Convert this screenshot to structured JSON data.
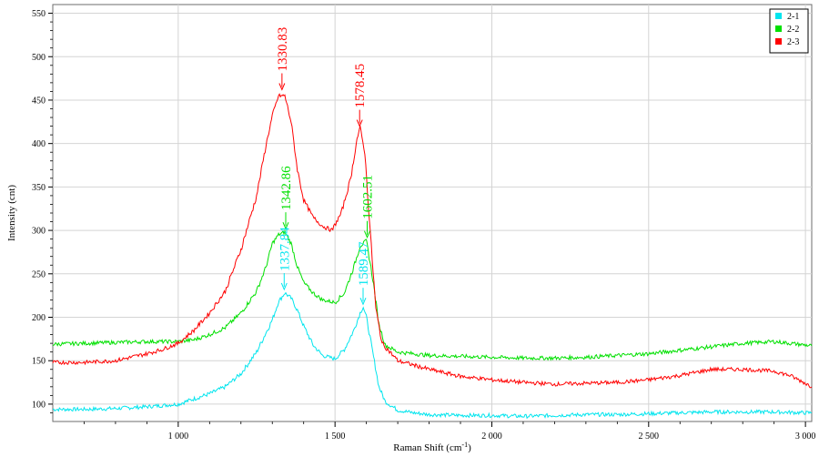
{
  "chart_data": {
    "type": "line",
    "xlabel": "Raman Shift (cm",
    "xlabel_sup": "-1",
    "xlabel_close": ")",
    "ylabel": "Intensity (cnt)",
    "xlim": [
      600,
      3020
    ],
    "ylim": [
      80,
      560
    ],
    "xticks": [
      {
        "value": 1000,
        "label": "1 000"
      },
      {
        "value": 1500,
        "label": "1 500"
      },
      {
        "value": 2000,
        "label": "2 000"
      },
      {
        "value": 2500,
        "label": "2 500"
      },
      {
        "value": 3000,
        "label": "3 000"
      }
    ],
    "yticks": [
      {
        "value": 100,
        "label": "100"
      },
      {
        "value": 150,
        "label": "150"
      },
      {
        "value": 200,
        "label": "200"
      },
      {
        "value": 250,
        "label": "250"
      },
      {
        "value": 300,
        "label": "300"
      },
      {
        "value": 350,
        "label": "350"
      },
      {
        "value": 400,
        "label": "400"
      },
      {
        "value": 450,
        "label": "450"
      },
      {
        "value": 500,
        "label": "500"
      },
      {
        "value": 550,
        "label": "550"
      }
    ],
    "grid": true,
    "legend_position": "top-right",
    "series": [
      {
        "name": "2-1",
        "color": "#00e5ee",
        "x": [
          600,
          700,
          800,
          900,
          1000,
          1100,
          1150,
          1200,
          1250,
          1300,
          1320,
          1340,
          1360,
          1380,
          1400,
          1430,
          1460,
          1500,
          1530,
          1560,
          1580,
          1590,
          1600,
          1620,
          1640,
          1660,
          1700,
          1750,
          1800,
          1900,
          2000,
          2100,
          2200,
          2300,
          2400,
          2500,
          2600,
          2700,
          2800,
          2900,
          3000,
          3020
        ],
        "y": [
          94,
          94,
          95,
          97,
          100,
          112,
          120,
          135,
          160,
          197,
          218,
          228,
          222,
          208,
          190,
          168,
          156,
          152,
          163,
          185,
          205,
          212,
          200,
          160,
          120,
          103,
          93,
          90,
          88,
          87,
          87,
          86,
          87,
          88,
          88,
          89,
          90,
          91,
          91,
          91,
          90,
          90
        ]
      },
      {
        "name": "2-2",
        "color": "#00e000",
        "x": [
          600,
          700,
          800,
          900,
          1000,
          1050,
          1100,
          1150,
          1200,
          1250,
          1280,
          1300,
          1320,
          1340,
          1360,
          1380,
          1400,
          1430,
          1460,
          1500,
          1530,
          1560,
          1580,
          1600,
          1620,
          1640,
          1660,
          1700,
          1800,
          1900,
          2000,
          2100,
          2200,
          2300,
          2400,
          2500,
          2600,
          2700,
          2800,
          2900,
          3000,
          3020
        ],
        "y": [
          169,
          170,
          171,
          172,
          172,
          174,
          180,
          188,
          205,
          230,
          258,
          285,
          295,
          298,
          285,
          258,
          240,
          228,
          220,
          217,
          228,
          258,
          282,
          288,
          245,
          192,
          168,
          160,
          156,
          155,
          154,
          153,
          153,
          154,
          156,
          158,
          162,
          166,
          170,
          172,
          168,
          167
        ]
      },
      {
        "name": "2-3",
        "color": "#ff0000",
        "x": [
          600,
          700,
          800,
          900,
          950,
          1000,
          1050,
          1100,
          1150,
          1200,
          1250,
          1280,
          1300,
          1320,
          1340,
          1360,
          1380,
          1400,
          1430,
          1460,
          1490,
          1520,
          1550,
          1570,
          1580,
          1595,
          1610,
          1630,
          1650,
          1700,
          1800,
          1900,
          2000,
          2100,
          2200,
          2300,
          2400,
          2500,
          2600,
          2700,
          2800,
          2900,
          2950,
          3000,
          3020
        ],
        "y": [
          148,
          148,
          150,
          158,
          163,
          170,
          185,
          205,
          230,
          278,
          340,
          398,
          432,
          455,
          455,
          425,
          370,
          335,
          315,
          305,
          300,
          320,
          360,
          405,
          418,
          390,
          310,
          210,
          170,
          150,
          140,
          132,
          128,
          125,
          123,
          124,
          125,
          128,
          133,
          140,
          140,
          138,
          133,
          124,
          120
        ]
      }
    ],
    "annotations": [
      {
        "text": "1330.83",
        "x": 1330.83,
        "tip_y": 462,
        "color": "#ff0000"
      },
      {
        "text": "1578.45",
        "x": 1578.45,
        "tip_y": 420,
        "color": "#ff0000"
      },
      {
        "text": "1342.86",
        "x": 1342.86,
        "tip_y": 302,
        "color": "#00e000"
      },
      {
        "text": "1602.51",
        "x": 1602.51,
        "tip_y": 292,
        "color": "#00e000"
      },
      {
        "text": "1337.84",
        "x": 1337.84,
        "tip_y": 232,
        "color": "#00e5ee"
      },
      {
        "text": "1589.47",
        "x": 1589.47,
        "tip_y": 215,
        "color": "#00e5ee"
      }
    ]
  }
}
